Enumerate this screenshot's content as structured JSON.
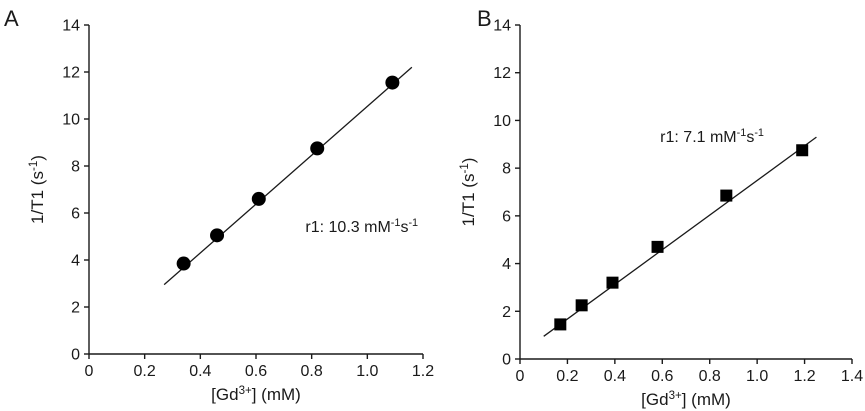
{
  "chart_data": [
    {
      "panel_label": "A",
      "type": "scatter",
      "marker": "circle",
      "xlabel": "[Gd3+] (mM)",
      "ylabel": "1/T1 (s-1)",
      "xlim": [
        0,
        1.2
      ],
      "ylim": [
        0,
        14
      ],
      "xticks": [
        "0",
        "0.2",
        "0.4",
        "0.6",
        "0.8",
        "1.0",
        "1.2"
      ],
      "yticks": [
        "0",
        "2",
        "4",
        "6",
        "8",
        "10",
        "12",
        "14"
      ],
      "series": [
        {
          "x": [
            0.34,
            0.46,
            0.61,
            0.82,
            1.09
          ],
          "y": [
            3.85,
            5.05,
            6.6,
            8.75,
            11.55
          ]
        }
      ],
      "fit_line": {
        "x": [
          0.27,
          1.16
        ],
        "y": [
          2.95,
          12.2
        ]
      },
      "annotation": {
        "text": "r1: 10.3 mM-1s-1",
        "x": 0.98,
        "y": 5.2
      }
    },
    {
      "panel_label": "B",
      "type": "scatter",
      "marker": "square",
      "xlabel": "[Gd3+] (mM)",
      "ylabel": "1/T1 (s-1)",
      "xlim": [
        0,
        1.4
      ],
      "ylim": [
        0,
        14
      ],
      "xticks": [
        "0",
        "0.2",
        "0.4",
        "0.6",
        "0.8",
        "1.0",
        "1.2",
        "1.4"
      ],
      "yticks": [
        "0",
        "2",
        "4",
        "6",
        "8",
        "10",
        "12",
        "14"
      ],
      "series": [
        {
          "x": [
            0.17,
            0.26,
            0.39,
            0.58,
            0.87,
            1.19
          ],
          "y": [
            1.45,
            2.25,
            3.2,
            4.7,
            6.85,
            8.75
          ]
        }
      ],
      "fit_line": {
        "x": [
          0.1,
          1.25
        ],
        "y": [
          0.95,
          9.3
        ]
      },
      "annotation": {
        "text": "r1: 7.1 mM-1s-1",
        "x": 0.81,
        "y": 9.1
      }
    }
  ]
}
